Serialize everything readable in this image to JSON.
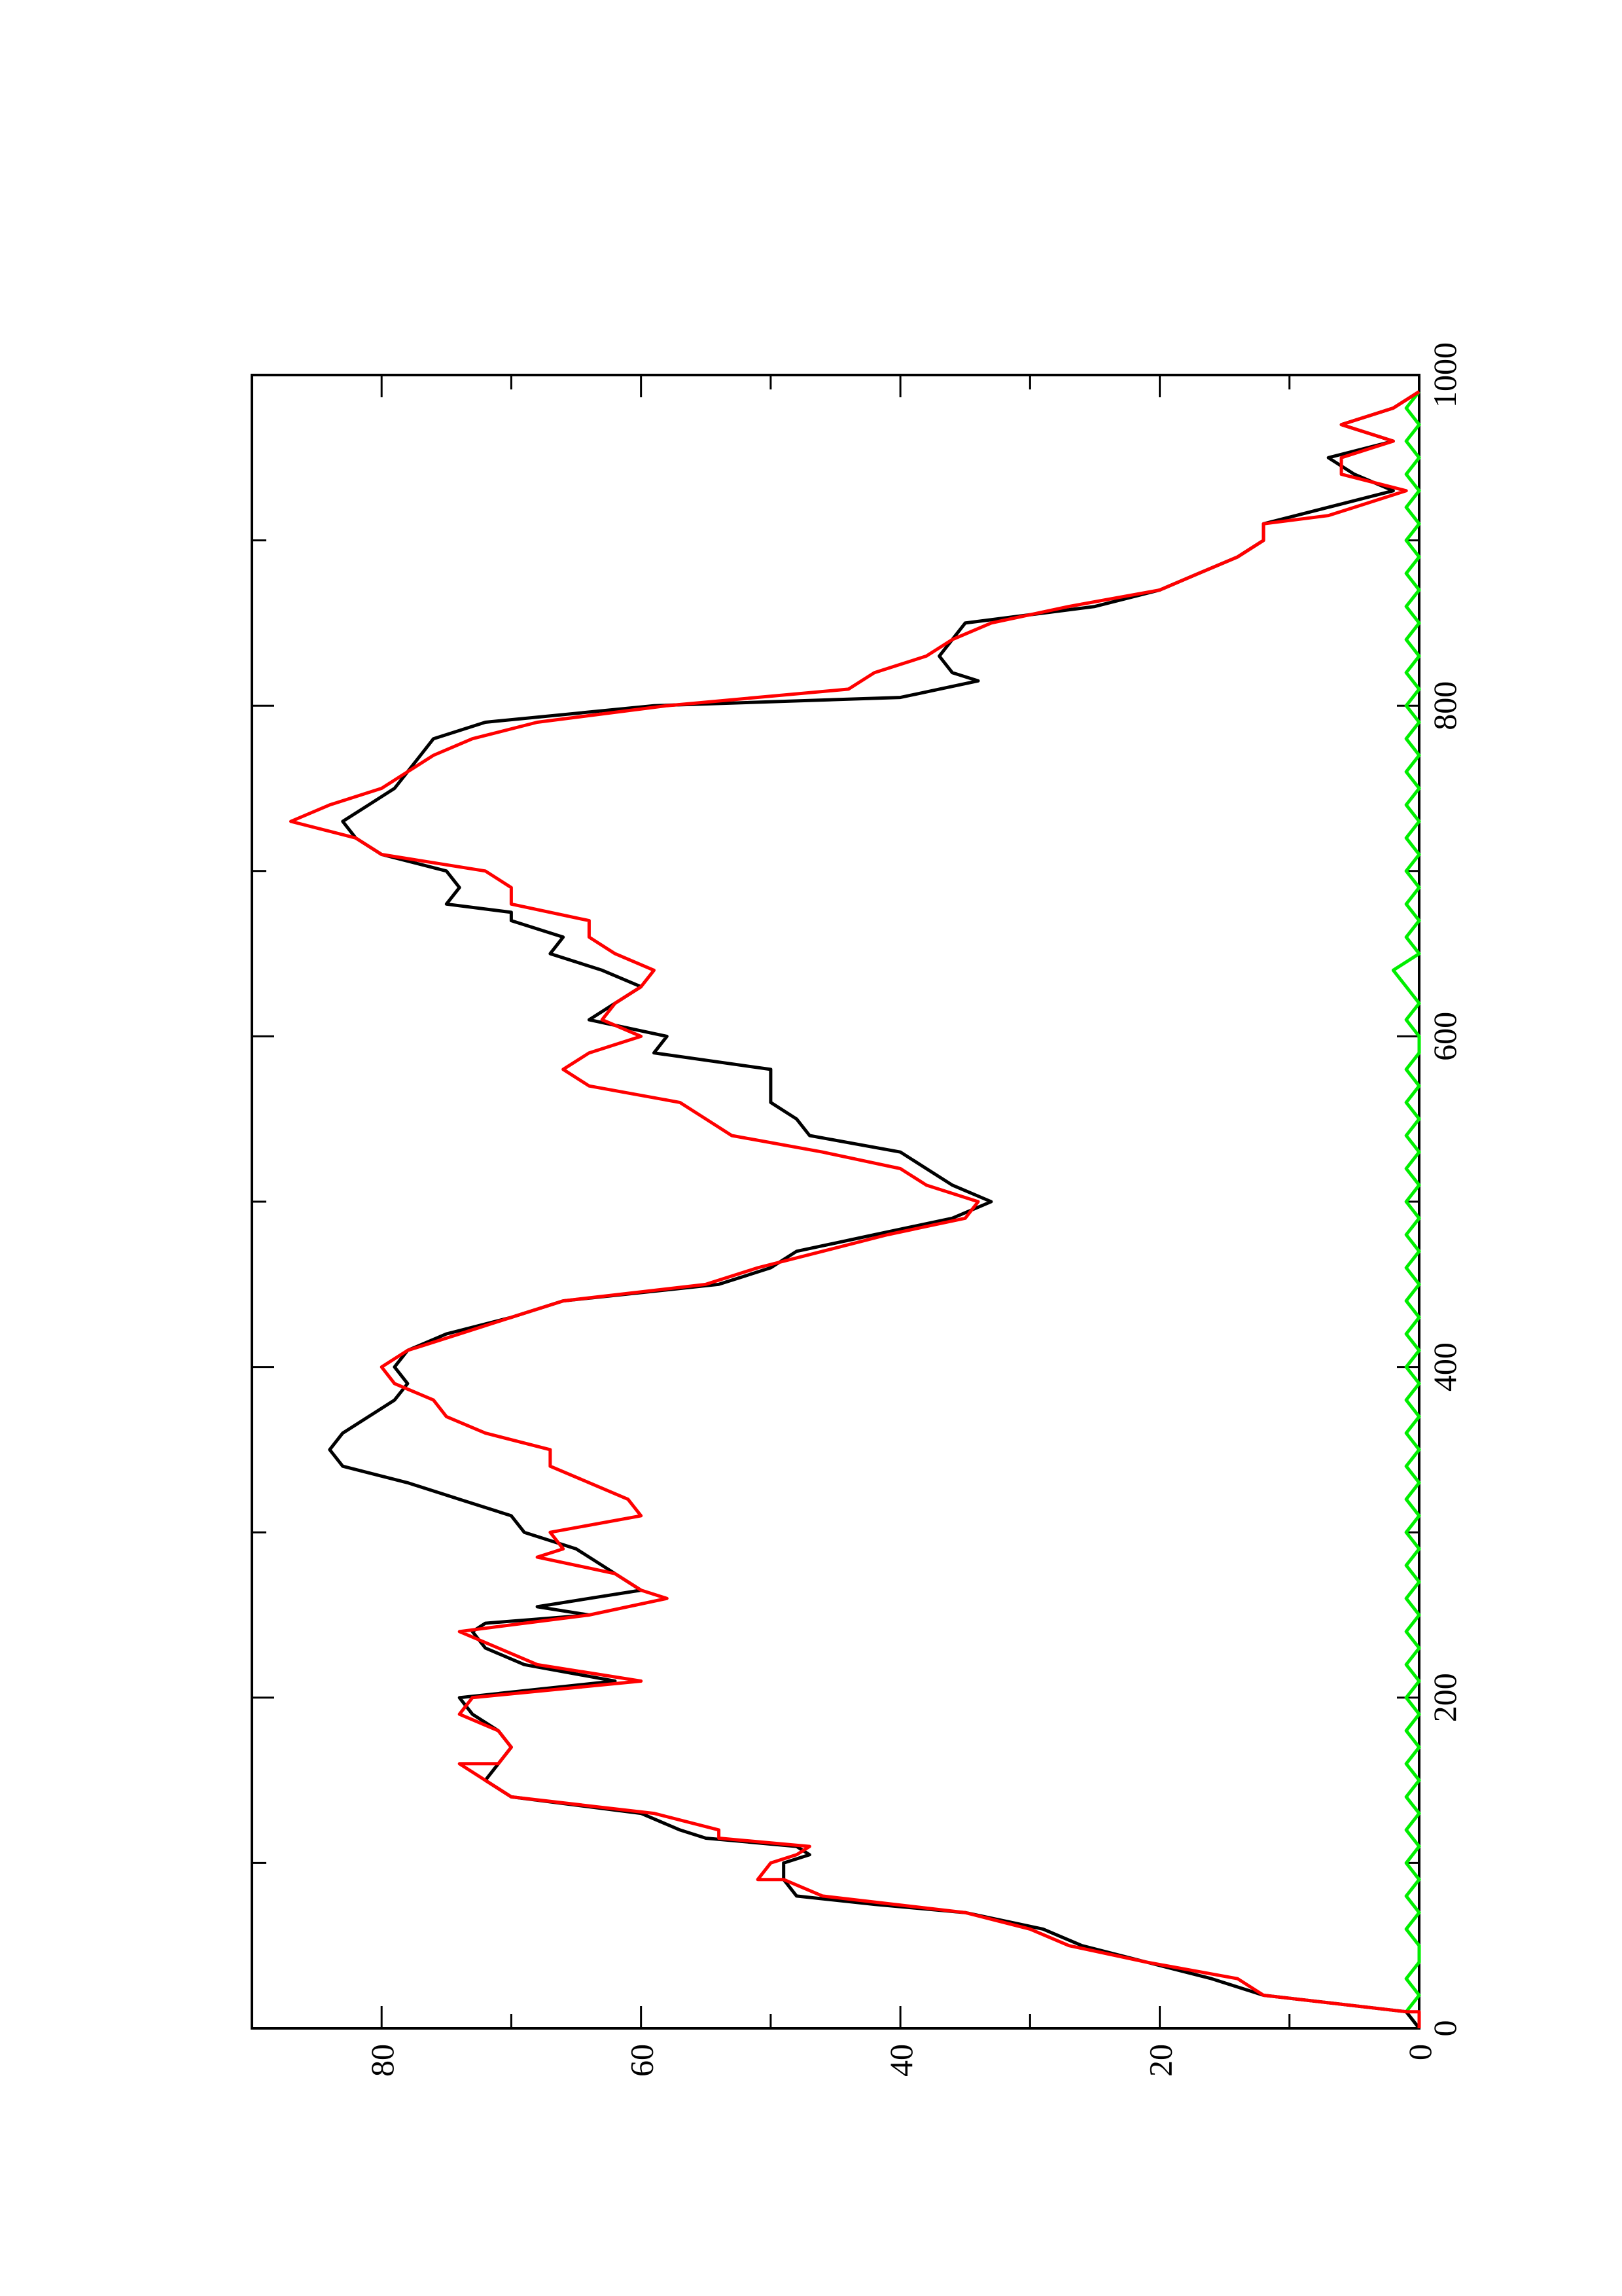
{
  "chart_data": {
    "type": "line",
    "orientation": "rotated 90 degrees counter-clockwise (x axis runs bottom-to-top along the right edge)",
    "title": "",
    "xlabel": "",
    "ylabel": "",
    "xlim": [
      0,
      1000
    ],
    "ylim": [
      0,
      90
    ],
    "x_ticks": [
      0,
      200,
      400,
      600,
      800,
      1000
    ],
    "x_tick_labels": [
      "0",
      "200",
      "400",
      "600",
      "800",
      "1000"
    ],
    "x_minor_ticks": [
      100,
      300,
      500,
      700,
      900
    ],
    "y_ticks": [
      0,
      20,
      40,
      60,
      80
    ],
    "y_tick_labels": [
      "0",
      "20",
      "40",
      "60",
      "80"
    ],
    "y_minor_ticks": [
      10,
      30,
      50,
      70
    ],
    "grid": false,
    "legend": "none",
    "series": [
      {
        "color": "#000000",
        "points": [
          [
            0,
            0
          ],
          [
            10,
            1
          ],
          [
            20,
            12
          ],
          [
            30,
            16
          ],
          [
            40,
            21
          ],
          [
            50,
            26
          ],
          [
            60,
            29
          ],
          [
            70,
            35
          ],
          [
            75,
            42
          ],
          [
            80,
            48
          ],
          [
            90,
            49
          ],
          [
            100,
            49
          ],
          [
            105,
            47
          ],
          [
            110,
            48
          ],
          [
            115,
            55
          ],
          [
            120,
            57
          ],
          [
            130,
            60
          ],
          [
            140,
            70
          ],
          [
            150,
            72
          ],
          [
            160,
            71
          ],
          [
            170,
            70
          ],
          [
            180,
            71
          ],
          [
            190,
            73
          ],
          [
            200,
            74
          ],
          [
            210,
            62
          ],
          [
            220,
            69
          ],
          [
            230,
            72
          ],
          [
            240,
            73
          ],
          [
            245,
            72
          ],
          [
            250,
            64
          ],
          [
            255,
            68
          ],
          [
            260,
            64
          ],
          [
            265,
            60
          ],
          [
            270,
            61
          ],
          [
            280,
            63
          ],
          [
            290,
            65
          ],
          [
            300,
            69
          ],
          [
            310,
            70
          ],
          [
            320,
            74
          ],
          [
            330,
            78
          ],
          [
            340,
            83
          ],
          [
            350,
            84
          ],
          [
            360,
            83
          ],
          [
            370,
            81
          ],
          [
            380,
            79
          ],
          [
            390,
            78
          ],
          [
            400,
            79
          ],
          [
            410,
            78
          ],
          [
            420,
            75
          ],
          [
            430,
            70
          ],
          [
            440,
            66
          ],
          [
            450,
            54
          ],
          [
            460,
            50
          ],
          [
            470,
            48
          ],
          [
            480,
            42
          ],
          [
            490,
            36
          ],
          [
            500,
            33
          ],
          [
            510,
            36
          ],
          [
            520,
            38
          ],
          [
            530,
            40
          ],
          [
            540,
            47
          ],
          [
            550,
            48
          ],
          [
            560,
            50
          ],
          [
            570,
            50
          ],
          [
            580,
            50
          ],
          [
            590,
            59
          ],
          [
            600,
            58
          ],
          [
            610,
            64
          ],
          [
            620,
            62
          ],
          [
            630,
            60
          ],
          [
            640,
            63
          ],
          [
            650,
            67
          ],
          [
            660,
            66
          ],
          [
            670,
            70
          ],
          [
            675,
            70
          ],
          [
            680,
            75
          ],
          [
            690,
            74
          ],
          [
            700,
            75
          ],
          [
            710,
            80
          ],
          [
            720,
            82
          ],
          [
            730,
            83
          ],
          [
            740,
            81
          ],
          [
            750,
            79
          ],
          [
            760,
            78
          ],
          [
            770,
            77
          ],
          [
            780,
            76
          ],
          [
            790,
            72
          ],
          [
            800,
            59
          ],
          [
            805,
            40
          ],
          [
            810,
            37
          ],
          [
            815,
            34
          ],
          [
            820,
            36
          ],
          [
            830,
            37
          ],
          [
            840,
            36
          ],
          [
            850,
            35
          ],
          [
            860,
            25
          ],
          [
            870,
            20
          ],
          [
            880,
            17
          ],
          [
            890,
            14
          ],
          [
            900,
            12
          ],
          [
            910,
            12
          ],
          [
            920,
            7
          ],
          [
            930,
            2
          ],
          [
            940,
            5
          ],
          [
            950,
            7
          ],
          [
            960,
            2
          ],
          [
            970,
            6
          ],
          [
            980,
            2
          ],
          [
            990,
            0
          ]
        ]
      },
      {
        "color": "#ff0000",
        "points": [
          [
            0,
            0
          ],
          [
            10,
            0
          ],
          [
            10,
            1
          ],
          [
            20,
            12
          ],
          [
            30,
            14
          ],
          [
            40,
            21
          ],
          [
            50,
            27
          ],
          [
            60,
            30
          ],
          [
            70,
            35
          ],
          [
            80,
            46
          ],
          [
            90,
            49
          ],
          [
            90,
            51
          ],
          [
            100,
            50
          ],
          [
            105,
            48
          ],
          [
            110,
            47
          ],
          [
            115,
            54
          ],
          [
            120,
            54
          ],
          [
            130,
            59
          ],
          [
            140,
            70
          ],
          [
            150,
            72
          ],
          [
            160,
            74
          ],
          [
            160,
            71
          ],
          [
            170,
            70
          ],
          [
            180,
            71
          ],
          [
            190,
            74
          ],
          [
            200,
            73
          ],
          [
            210,
            60
          ],
          [
            220,
            68
          ],
          [
            230,
            71
          ],
          [
            240,
            74
          ],
          [
            250,
            64
          ],
          [
            260,
            58
          ],
          [
            265,
            60
          ],
          [
            275,
            62
          ],
          [
            285,
            68
          ],
          [
            290,
            66
          ],
          [
            300,
            67
          ],
          [
            310,
            60
          ],
          [
            320,
            61
          ],
          [
            330,
            64
          ],
          [
            340,
            67
          ],
          [
            350,
            67
          ],
          [
            360,
            72
          ],
          [
            370,
            75
          ],
          [
            380,
            76
          ],
          [
            390,
            79
          ],
          [
            400,
            80
          ],
          [
            410,
            78
          ],
          [
            420,
            74
          ],
          [
            430,
            70
          ],
          [
            440,
            66
          ],
          [
            450,
            55
          ],
          [
            460,
            51
          ],
          [
            470,
            46
          ],
          [
            480,
            41
          ],
          [
            490,
            35
          ],
          [
            500,
            34
          ],
          [
            510,
            38
          ],
          [
            520,
            40
          ],
          [
            530,
            46
          ],
          [
            540,
            53
          ],
          [
            550,
            55
          ],
          [
            560,
            57
          ],
          [
            570,
            64
          ],
          [
            580,
            66
          ],
          [
            590,
            64
          ],
          [
            600,
            60
          ],
          [
            610,
            63
          ],
          [
            620,
            62
          ],
          [
            630,
            60
          ],
          [
            640,
            59
          ],
          [
            650,
            62
          ],
          [
            660,
            64
          ],
          [
            670,
            64
          ],
          [
            680,
            70
          ],
          [
            690,
            70
          ],
          [
            700,
            72
          ],
          [
            710,
            80
          ],
          [
            720,
            82
          ],
          [
            730,
            87
          ],
          [
            740,
            84
          ],
          [
            750,
            80
          ],
          [
            760,
            78
          ],
          [
            770,
            76
          ],
          [
            780,
            73
          ],
          [
            790,
            68
          ],
          [
            800,
            58
          ],
          [
            810,
            44
          ],
          [
            820,
            42
          ],
          [
            830,
            38
          ],
          [
            840,
            36
          ],
          [
            850,
            33
          ],
          [
            860,
            27
          ],
          [
            870,
            20
          ],
          [
            880,
            17
          ],
          [
            890,
            14
          ],
          [
            900,
            12
          ],
          [
            910,
            12
          ],
          [
            915,
            7
          ],
          [
            920,
            5
          ],
          [
            930,
            1
          ],
          [
            940,
            6
          ],
          [
            950,
            6
          ],
          [
            960,
            2
          ],
          [
            970,
            6
          ],
          [
            980,
            2
          ],
          [
            990,
            0
          ]
        ]
      },
      {
        "color": "#00ee00",
        "points": [
          [
            0,
            0
          ],
          [
            10,
            1
          ],
          [
            20,
            0
          ],
          [
            30,
            1
          ],
          [
            40,
            0
          ],
          [
            50,
            0
          ],
          [
            60,
            1
          ],
          [
            70,
            0
          ],
          [
            80,
            1
          ],
          [
            90,
            0
          ],
          [
            100,
            1
          ],
          [
            110,
            0
          ],
          [
            120,
            1
          ],
          [
            130,
            0
          ],
          [
            140,
            1
          ],
          [
            150,
            0
          ],
          [
            160,
            1
          ],
          [
            170,
            0
          ],
          [
            180,
            1
          ],
          [
            190,
            0
          ],
          [
            200,
            1
          ],
          [
            210,
            0
          ],
          [
            220,
            1
          ],
          [
            230,
            0
          ],
          [
            240,
            1
          ],
          [
            250,
            0
          ],
          [
            260,
            1
          ],
          [
            270,
            0
          ],
          [
            280,
            1
          ],
          [
            290,
            0
          ],
          [
            300,
            1
          ],
          [
            310,
            0
          ],
          [
            320,
            1
          ],
          [
            330,
            0
          ],
          [
            340,
            1
          ],
          [
            350,
            0
          ],
          [
            360,
            1
          ],
          [
            370,
            0
          ],
          [
            380,
            1
          ],
          [
            390,
            0
          ],
          [
            400,
            1
          ],
          [
            410,
            0
          ],
          [
            420,
            1
          ],
          [
            430,
            0
          ],
          [
            440,
            1
          ],
          [
            450,
            0
          ],
          [
            460,
            1
          ],
          [
            470,
            0
          ],
          [
            480,
            1
          ],
          [
            490,
            0
          ],
          [
            500,
            1
          ],
          [
            510,
            0
          ],
          [
            520,
            1
          ],
          [
            530,
            0
          ],
          [
            540,
            1
          ],
          [
            550,
            0
          ],
          [
            560,
            1
          ],
          [
            570,
            0
          ],
          [
            580,
            1
          ],
          [
            590,
            0
          ],
          [
            600,
            0
          ],
          [
            610,
            1
          ],
          [
            620,
            0
          ],
          [
            630,
            1
          ],
          [
            640,
            2
          ],
          [
            650,
            0
          ],
          [
            660,
            1
          ],
          [
            670,
            0
          ],
          [
            680,
            1
          ],
          [
            690,
            0
          ],
          [
            700,
            1
          ],
          [
            710,
            0
          ],
          [
            720,
            1
          ],
          [
            730,
            0
          ],
          [
            740,
            1
          ],
          [
            750,
            0
          ],
          [
            760,
            1
          ],
          [
            770,
            0
          ],
          [
            780,
            1
          ],
          [
            790,
            0
          ],
          [
            800,
            1
          ],
          [
            810,
            0
          ],
          [
            820,
            1
          ],
          [
            830,
            0
          ],
          [
            840,
            1
          ],
          [
            850,
            0
          ],
          [
            860,
            1
          ],
          [
            870,
            0
          ],
          [
            880,
            1
          ],
          [
            890,
            0
          ],
          [
            900,
            1
          ],
          [
            910,
            0
          ],
          [
            920,
            1
          ],
          [
            930,
            0
          ],
          [
            940,
            1
          ],
          [
            950,
            0
          ],
          [
            960,
            1
          ],
          [
            970,
            0
          ],
          [
            980,
            1
          ],
          [
            990,
            0
          ]
        ]
      }
    ]
  }
}
